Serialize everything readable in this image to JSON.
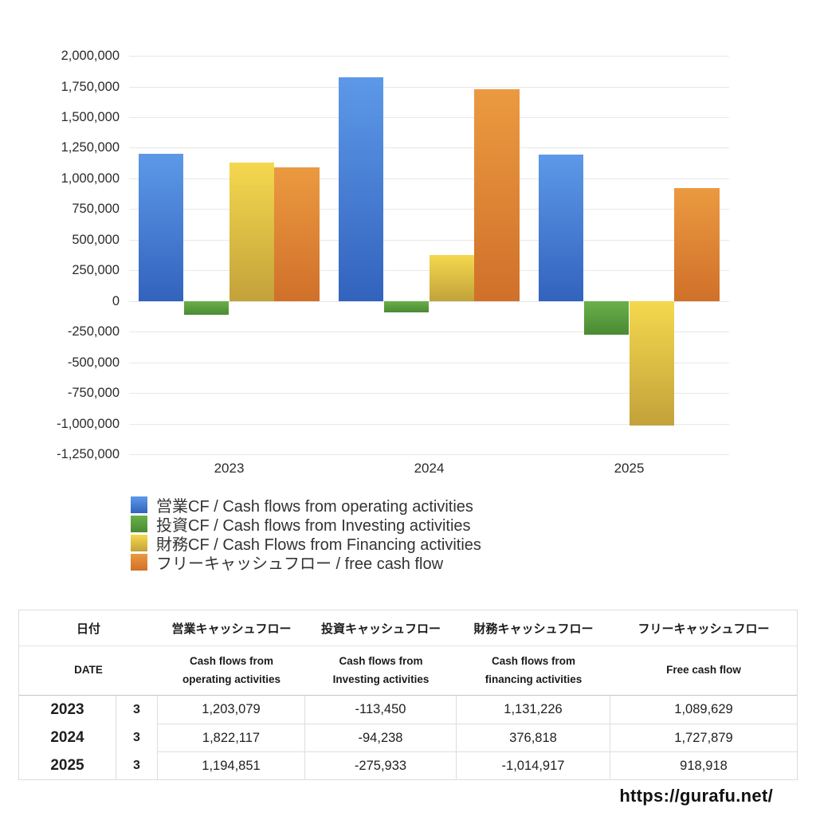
{
  "chart_data": {
    "type": "bar",
    "title": "",
    "xlabel": "",
    "ylabel": "",
    "categories": [
      "2023",
      "2024",
      "2025"
    ],
    "series": [
      {
        "key": "operating-cf",
        "name": "営業CF / Cash flows from operating activities",
        "color_top": "#5d99e8",
        "color_bottom": "#3263bd",
        "values": [
          1203079,
          1822117,
          1194851
        ]
      },
      {
        "key": "investing-cf",
        "name": "投資CF / Cash flows from Investing activities",
        "color_top": "#6ab04a",
        "color_bottom": "#4a8a33",
        "values": [
          -113450,
          -94238,
          -275933
        ]
      },
      {
        "key": "financing-cf",
        "name": "財務CF / Cash Flows from Financing activities",
        "color_top": "#f5d84e",
        "color_bottom": "#c2a23a",
        "values": [
          1131226,
          376818,
          -1014917
        ]
      },
      {
        "key": "free-cash-flow",
        "name": "フリーキャッシュフロー / free cash flow",
        "color_top": "#eb9a40",
        "color_bottom": "#d0702a",
        "values": [
          1089629,
          1727879,
          918918
        ]
      }
    ],
    "ylim": [
      -1250000,
      2000000
    ],
    "ytick_step": 250000,
    "grid": true,
    "legend_position": "bottom-left"
  },
  "table": {
    "header_row1": [
      "日付",
      "営業キャッシュフロー",
      "投資キャッシュフロー",
      "財務キャッシュフロー",
      "フリーキャッシュフロー"
    ],
    "header_row2": [
      "DATE",
      "Cash flows from\noperating activities",
      "Cash flows from\nInvesting activities",
      "Cash flows from\nfinancing activities",
      "Free cash flow"
    ],
    "rows": [
      {
        "year": "2023",
        "month": "3",
        "values": [
          "1,203,079",
          "-113,450",
          "1,131,226",
          "1,089,629"
        ]
      },
      {
        "year": "2024",
        "month": "3",
        "values": [
          "1,822,117",
          "-94,238",
          "376,818",
          "1,727,879"
        ]
      },
      {
        "year": "2025",
        "month": "3",
        "values": [
          "1,194,851",
          "-275,933",
          "-1,014,917",
          "918,918"
        ]
      }
    ],
    "negative_color": "#d5513d"
  },
  "footer": {
    "url": "https://gurafu.net/"
  }
}
